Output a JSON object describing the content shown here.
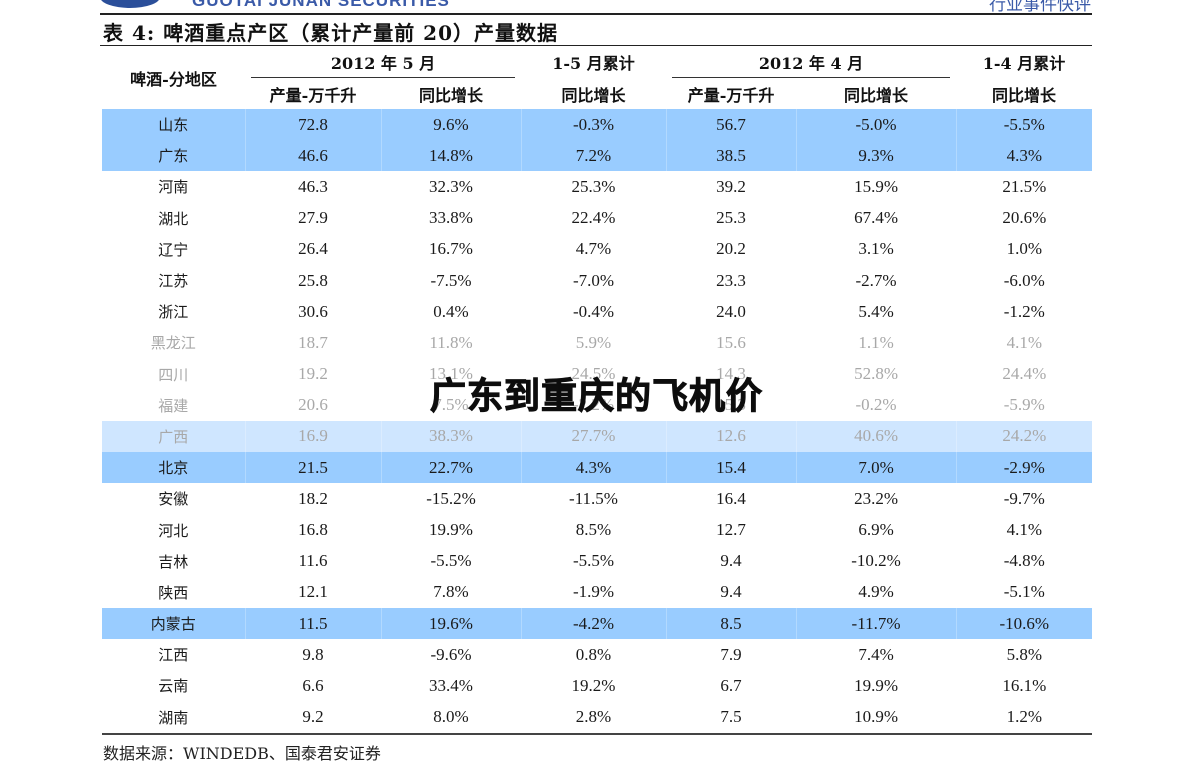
{
  "header": {
    "logo_text": "GUOTAI JUNAN SECURITIES",
    "report_type": "行业事件快评"
  },
  "table": {
    "title": "表 4: 啤酒重点产区（累计产量前 20）产量数据",
    "columns": {
      "region": "啤酒-分地区",
      "group_may": "2012 年 5 月",
      "group_jan_may": "1-5 月累计",
      "group_apr": "2012 年 4 月",
      "group_jan_apr": "1-4 月累计",
      "output": "产量-万千升",
      "yoy": "同比增长"
    },
    "rows": [
      {
        "region": "山东",
        "may_output": "72.8",
        "may_yoy": "9.6%",
        "ytd5_yoy": "-0.3%",
        "apr_output": "56.7",
        "apr_yoy": "-5.0%",
        "ytd4_yoy": "-5.5%",
        "style": "hl"
      },
      {
        "region": "广东",
        "may_output": "46.6",
        "may_yoy": "14.8%",
        "ytd5_yoy": "7.2%",
        "apr_output": "38.5",
        "apr_yoy": "9.3%",
        "ytd4_yoy": "4.3%",
        "style": "hl"
      },
      {
        "region": "河南",
        "may_output": "46.3",
        "may_yoy": "32.3%",
        "ytd5_yoy": "25.3%",
        "apr_output": "39.2",
        "apr_yoy": "15.9%",
        "ytd4_yoy": "21.5%",
        "style": ""
      },
      {
        "region": "湖北",
        "may_output": "27.9",
        "may_yoy": "33.8%",
        "ytd5_yoy": "22.4%",
        "apr_output": "25.3",
        "apr_yoy": "67.4%",
        "ytd4_yoy": "20.6%",
        "style": ""
      },
      {
        "region": "辽宁",
        "may_output": "26.4",
        "may_yoy": "16.7%",
        "ytd5_yoy": "4.7%",
        "apr_output": "20.2",
        "apr_yoy": "3.1%",
        "ytd4_yoy": "1.0%",
        "style": ""
      },
      {
        "region": "江苏",
        "may_output": "25.8",
        "may_yoy": "-7.5%",
        "ytd5_yoy": "-7.0%",
        "apr_output": "23.3",
        "apr_yoy": "-2.7%",
        "ytd4_yoy": "-6.0%",
        "style": ""
      },
      {
        "region": "浙江",
        "may_output": "30.6",
        "may_yoy": "0.4%",
        "ytd5_yoy": "-0.4%",
        "apr_output": "24.0",
        "apr_yoy": "5.4%",
        "ytd4_yoy": "-1.2%",
        "style": ""
      },
      {
        "region": "黑龙江",
        "may_output": "18.7",
        "may_yoy": "11.8%",
        "ytd5_yoy": "5.9%",
        "apr_output": "15.6",
        "apr_yoy": "1.1%",
        "ytd4_yoy": "4.1%",
        "style": "faded"
      },
      {
        "region": "四川",
        "may_output": "19.2",
        "may_yoy": "13.1%",
        "ytd5_yoy": "24.5%",
        "apr_output": "14.3",
        "apr_yoy": "52.8%",
        "ytd4_yoy": "24.4%",
        "style": "faded"
      },
      {
        "region": "福建",
        "may_output": "20.6",
        "may_yoy": "7.5%",
        "ytd5_yoy": "-2.2%",
        "apr_output": "15.3",
        "apr_yoy": "-0.2%",
        "ytd4_yoy": "-5.9%",
        "style": "faded"
      },
      {
        "region": "广西",
        "may_output": "16.9",
        "may_yoy": "38.3%",
        "ytd5_yoy": "27.7%",
        "apr_output": "12.6",
        "apr_yoy": "40.6%",
        "ytd4_yoy": "24.2%",
        "style": "hl-light faded"
      },
      {
        "region": "北京",
        "may_output": "21.5",
        "may_yoy": "22.7%",
        "ytd5_yoy": "4.3%",
        "apr_output": "15.4",
        "apr_yoy": "7.0%",
        "ytd4_yoy": "-2.9%",
        "style": "hl"
      },
      {
        "region": "安徽",
        "may_output": "18.2",
        "may_yoy": "-15.2%",
        "ytd5_yoy": "-11.5%",
        "apr_output": "16.4",
        "apr_yoy": "23.2%",
        "ytd4_yoy": "-9.7%",
        "style": ""
      },
      {
        "region": "河北",
        "may_output": "16.8",
        "may_yoy": "19.9%",
        "ytd5_yoy": "8.5%",
        "apr_output": "12.7",
        "apr_yoy": "6.9%",
        "ytd4_yoy": "4.1%",
        "style": ""
      },
      {
        "region": "吉林",
        "may_output": "11.6",
        "may_yoy": "-5.5%",
        "ytd5_yoy": "-5.5%",
        "apr_output": "9.4",
        "apr_yoy": "-10.2%",
        "ytd4_yoy": "-4.8%",
        "style": ""
      },
      {
        "region": "陕西",
        "may_output": "12.1",
        "may_yoy": "7.8%",
        "ytd5_yoy": "-1.9%",
        "apr_output": "9.4",
        "apr_yoy": "4.9%",
        "ytd4_yoy": "-5.1%",
        "style": ""
      },
      {
        "region": "内蒙古",
        "may_output": "11.5",
        "may_yoy": "19.6%",
        "ytd5_yoy": "-4.2%",
        "apr_output": "8.5",
        "apr_yoy": "-11.7%",
        "ytd4_yoy": "-10.6%",
        "style": "hl"
      },
      {
        "region": "江西",
        "may_output": "9.8",
        "may_yoy": "-9.6%",
        "ytd5_yoy": "0.8%",
        "apr_output": "7.9",
        "apr_yoy": "7.4%",
        "ytd4_yoy": "5.8%",
        "style": ""
      },
      {
        "region": "云南",
        "may_output": "6.6",
        "may_yoy": "33.4%",
        "ytd5_yoy": "19.2%",
        "apr_output": "6.7",
        "apr_yoy": "19.9%",
        "ytd4_yoy": "16.1%",
        "style": ""
      },
      {
        "region": "湖南",
        "may_output": "9.2",
        "may_yoy": "8.0%",
        "ytd5_yoy": "2.8%",
        "apr_output": "7.5",
        "apr_yoy": "10.9%",
        "ytd4_yoy": "1.2%",
        "style": "last"
      }
    ],
    "source": "数据来源：WINDEDB、国泰君安证券"
  },
  "overlay_text": "广东到重庆的飞机价",
  "colors": {
    "highlight": "#99ccff",
    "highlight_light": "#cfe6ff",
    "faded_text": "#a8a8a8",
    "brand": "#3a5aa8"
  }
}
